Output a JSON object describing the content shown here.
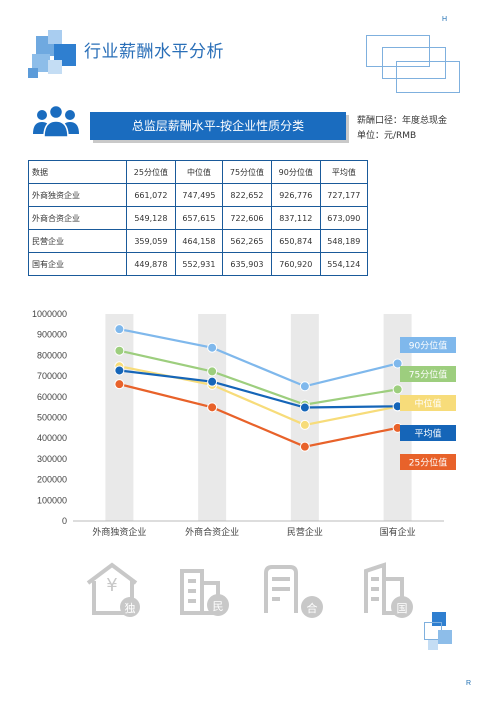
{
  "page": {
    "title": "行业薪酬水平分析",
    "corner_top": "H",
    "corner_bottom": "R"
  },
  "section": {
    "banner": "总监层薪酬水平-按企业性质分类",
    "caliber": "薪酬口径：年度总现金",
    "unit": "单位：元/RMB"
  },
  "table": {
    "headers": [
      "数据",
      "25分位值",
      "中位值",
      "75分位值",
      "90分位值",
      "平均值"
    ],
    "rows": [
      [
        "外商独资企业",
        "661,072",
        "747,495",
        "822,652",
        "926,776",
        "727,177"
      ],
      [
        "外商合资企业",
        "549,128",
        "657,615",
        "722,606",
        "837,112",
        "673,090"
      ],
      [
        "民营企业",
        "359,059",
        "464,158",
        "562,265",
        "650,874",
        "548,189"
      ],
      [
        "国有企业",
        "449,878",
        "552,931",
        "635,903",
        "760,920",
        "554,124"
      ]
    ]
  },
  "chart_data": {
    "type": "line",
    "categories": [
      "外商独资企业",
      "外商合资企业",
      "民营企业",
      "国有企业"
    ],
    "ylim": [
      0,
      1000000
    ],
    "yticks": [
      "0",
      "100000",
      "200000",
      "300000",
      "400000",
      "500000",
      "600000",
      "700000",
      "800000",
      "900000",
      "1000000"
    ],
    "legend_position": "right",
    "series": [
      {
        "name": "90分位值",
        "values": [
          926776,
          837112,
          650874,
          760920
        ],
        "color": "#7fb8ec"
      },
      {
        "name": "75分位值",
        "values": [
          822652,
          722606,
          562265,
          635903
        ],
        "color": "#9dce7e"
      },
      {
        "name": "中位值",
        "values": [
          747495,
          657615,
          464158,
          552931
        ],
        "color": "#f7dc7a"
      },
      {
        "name": "平均值",
        "values": [
          727177,
          673090,
          548189,
          554124
        ],
        "color": "#1565b8"
      },
      {
        "name": "25分位值",
        "values": [
          661072,
          549128,
          359059,
          449878
        ],
        "color": "#e8622a"
      }
    ]
  },
  "icons": {
    "labels": [
      "独",
      "民",
      "合",
      "国"
    ],
    "currency": "¥",
    "icon_color": "#c8c8c8"
  },
  "colors": {
    "brand": "#1a6cbf",
    "table_border": "#1a5a9a",
    "column_band": "#e9e9e9"
  }
}
